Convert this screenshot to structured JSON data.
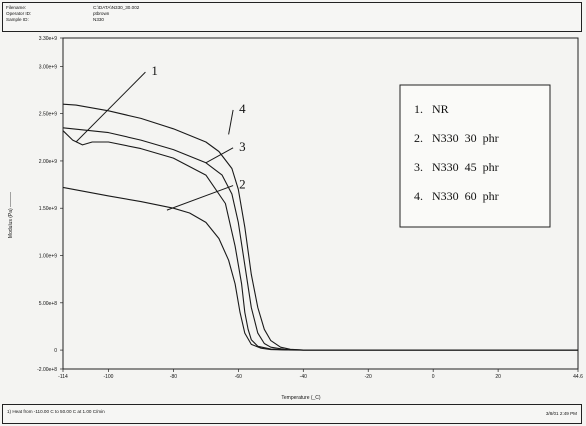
{
  "header": {
    "rows": [
      {
        "label": "Filename:",
        "value": "C:\\DATA\\N330_30.002"
      },
      {
        "label": "Operator ID:",
        "value": "ptbrown"
      },
      {
        "label": "Sample ID:",
        "value": "N330"
      }
    ]
  },
  "footer": {
    "run_info": "1) Heat from -110.00 C to 50.00 C at 1.00 C/min",
    "stamp": "3/8/01 2:49 PM"
  },
  "chart_data": {
    "type": "line",
    "xlabel": "Temperature (_C)",
    "ylabel": "Modulus (Pa) ———",
    "xlim": [
      -114,
      44.6
    ],
    "ylim": [
      -200000000.0,
      3300000000.0
    ],
    "x_ticks": [
      {
        "v": -114,
        "label": "-114"
      },
      {
        "v": -100,
        "label": "-100"
      },
      {
        "v": -80,
        "label": "-80"
      },
      {
        "v": -60,
        "label": "-60"
      },
      {
        "v": -40,
        "label": "-40"
      },
      {
        "v": -20,
        "label": "-20"
      },
      {
        "v": 0,
        "label": "0"
      },
      {
        "v": 20,
        "label": "20"
      },
      {
        "v": 44.6,
        "label": "44.6"
      }
    ],
    "y_ticks": [
      {
        "v": 3300000000.0,
        "label": "3.30e+9"
      },
      {
        "v": 3000000000.0,
        "label": "3.00e+9"
      },
      {
        "v": 2500000000.0,
        "label": "2.50e+9"
      },
      {
        "v": 2000000000.0,
        "label": "2.00e+9"
      },
      {
        "v": 1500000000.0,
        "label": "1.50e+9"
      },
      {
        "v": 1000000000.0,
        "label": "1.00e+9"
      },
      {
        "v": 500000000.0,
        "label": "5.00e+8"
      },
      {
        "v": 0,
        "label": "0"
      },
      {
        "v": -200000000.0,
        "label": "-2.00e+8"
      }
    ],
    "series": [
      {
        "name": "1",
        "x": [
          -114,
          -111,
          -108,
          -105,
          -100,
          -90,
          -80,
          -70,
          -64,
          -61,
          -59,
          -58,
          -57,
          -56,
          -54,
          -50,
          -45,
          -40,
          0,
          44.6
        ],
        "y": [
          2320000000.0,
          2220000000.0,
          2170000000.0,
          2200000000.0,
          2200000000.0,
          2130000000.0,
          2030000000.0,
          1850000000.0,
          1550000000.0,
          1100000000.0,
          700000000.0,
          400000000.0,
          220000000.0,
          110000000.0,
          40000000.0,
          10000000.0,
          2000000.0,
          0,
          0,
          0
        ]
      },
      {
        "name": "2",
        "x": [
          -114,
          -100,
          -90,
          -80,
          -75,
          -70,
          -66,
          -63,
          -61,
          -59.5,
          -58,
          -56,
          -53,
          -50,
          -45,
          -40,
          0,
          44.6
        ],
        "y": [
          1720000000.0,
          1630000000.0,
          1570000000.0,
          1500000000.0,
          1450000000.0,
          1350000000.0,
          1180000000.0,
          950000000.0,
          700000000.0,
          400000000.0,
          180000000.0,
          60000000.0,
          20000000.0,
          5000000.0,
          1000000.0,
          0,
          0,
          0
        ]
      },
      {
        "name": "3",
        "x": [
          -114,
          -100,
          -90,
          -80,
          -70,
          -65,
          -62,
          -60,
          -58,
          -56,
          -54,
          -52,
          -50,
          -46,
          -40,
          0,
          44.6
        ],
        "y": [
          2350000000.0,
          2300000000.0,
          2220000000.0,
          2120000000.0,
          1980000000.0,
          1850000000.0,
          1650000000.0,
          1350000000.0,
          900000000.0,
          450000000.0,
          180000000.0,
          70000000.0,
          30000000.0,
          8000000.0,
          0,
          0,
          0
        ]
      },
      {
        "name": "4",
        "x": [
          -114,
          -110,
          -100,
          -90,
          -80,
          -70,
          -66,
          -62,
          -60,
          -58,
          -56,
          -54,
          -52,
          -50,
          -47,
          -44,
          -40,
          0,
          44.6
        ],
        "y": [
          2600000000.0,
          2590000000.0,
          2530000000.0,
          2450000000.0,
          2340000000.0,
          2200000000.0,
          2100000000.0,
          1920000000.0,
          1700000000.0,
          1300000000.0,
          800000000.0,
          450000000.0,
          220000000.0,
          100000000.0,
          30000000.0,
          8000000.0,
          0,
          0,
          0
        ]
      }
    ],
    "callouts": [
      {
        "label": "1",
        "at": [
          -110,
          2200000000.0
        ],
        "text_at": [
          -88,
          2950000000.0
        ]
      },
      {
        "label": "2",
        "at": [
          -82,
          1480000000.0
        ],
        "text_at": [
          -61,
          1750000000.0
        ]
      },
      {
        "label": "3",
        "at": [
          -70,
          1980000000.0
        ],
        "text_at": [
          -61,
          2150000000.0
        ]
      },
      {
        "label": "4",
        "at": [
          -63,
          2280000000.0
        ],
        "text_at": [
          -61,
          2550000000.0
        ]
      }
    ],
    "legend": {
      "position": "top-right",
      "items": [
        "1.   NR",
        "2.   N330  30  phr",
        "3.   N330  45  phr",
        "4.   N330  60  phr"
      ]
    },
    "grid": false
  }
}
